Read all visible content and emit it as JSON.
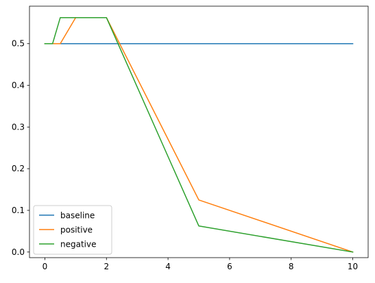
{
  "chart_data": {
    "type": "line",
    "title": "",
    "xlabel": "",
    "ylabel": "",
    "xlim": [
      -0.5,
      10.5
    ],
    "ylim": [
      -0.0135,
      0.59
    ],
    "x_ticks": [
      0,
      2,
      4,
      6,
      8,
      10
    ],
    "x_tick_labels": [
      "0",
      "2",
      "4",
      "6",
      "8",
      "10"
    ],
    "y_ticks": [
      0.0,
      0.1,
      0.2,
      0.3,
      0.4,
      0.5
    ],
    "y_tick_labels": [
      "0.0",
      "0.1",
      "0.2",
      "0.3",
      "0.4",
      "0.5"
    ],
    "grid": false,
    "legend_position": "lower-left",
    "series": [
      {
        "name": "baseline",
        "color": "#1f77b4",
        "x": [
          0,
          10
        ],
        "y": [
          0.5,
          0.5
        ]
      },
      {
        "name": "positive",
        "color": "#ff7f0e",
        "x": [
          0,
          0.5,
          1,
          2,
          5,
          10
        ],
        "y": [
          0.5,
          0.5,
          0.5625,
          0.5625,
          0.125,
          0.0
        ]
      },
      {
        "name": "negative",
        "color": "#2ca02c",
        "x": [
          0,
          0.25,
          0.5,
          2,
          5,
          10
        ],
        "y": [
          0.5,
          0.5,
          0.5625,
          0.5625,
          0.0625,
          0.0
        ]
      }
    ]
  }
}
